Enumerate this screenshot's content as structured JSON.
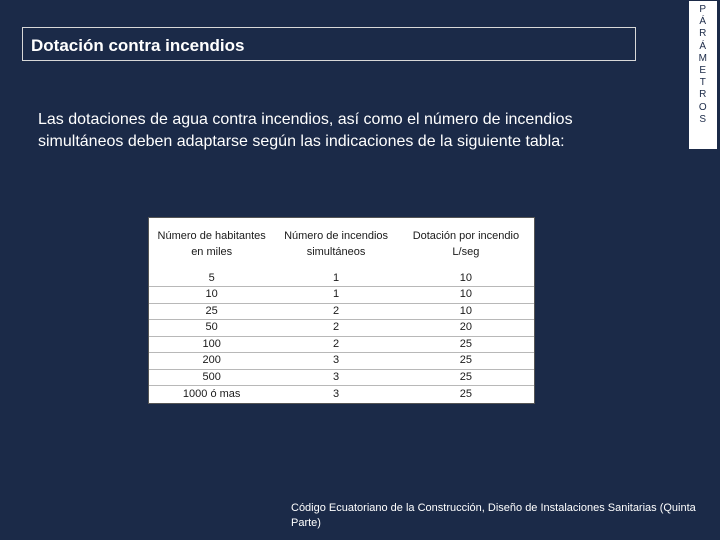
{
  "title": "Dotación contra incendios",
  "side_tab": [
    "P",
    "Á",
    "R",
    "Á",
    "M",
    "E",
    "T",
    "R",
    "O",
    "S"
  ],
  "intro": "Las dotaciones de agua contra incendios, así como el número de incendios simultáneos deben adaptarse según las indicaciones de la siguiente tabla:",
  "table": {
    "headers": [
      "Número de habitantes en miles",
      "Número de incendios simultáneos",
      "Dotación por incendio L/seg"
    ],
    "rows": [
      [
        "5",
        "1",
        "10"
      ],
      [
        "10",
        "1",
        "10"
      ],
      [
        "25",
        "2",
        "10"
      ],
      [
        "50",
        "2",
        "20"
      ],
      [
        "100",
        "2",
        "25"
      ],
      [
        "200",
        "3",
        "25"
      ],
      [
        "500",
        "3",
        "25"
      ],
      [
        "1000 ó mas",
        "3",
        "25"
      ]
    ]
  },
  "source": "Código Ecuatoriano de la Construcción, Diseño de Instalaciones Sanitarias (Quinta Parte)",
  "colors": {
    "background": "#1b2a48",
    "text": "#ffffff",
    "table_background": "#ffffff"
  }
}
